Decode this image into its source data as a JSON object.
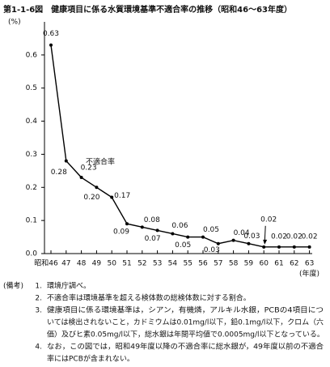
{
  "chart_data": {
    "type": "line",
    "title": "第1-1-6図　健康項目に係る水質環境基準不適合率の推移（昭和46～63年度）",
    "y_unit": "(%)",
    "x_unit": "(年度)",
    "annotation": "不適合率",
    "categories": [
      "昭和46",
      "47",
      "48",
      "49",
      "50",
      "51",
      "52",
      "53",
      "54",
      "55",
      "56",
      "57",
      "58",
      "59",
      "60",
      "61",
      "62",
      "63"
    ],
    "values": [
      0.63,
      0.28,
      0.23,
      0.2,
      0.17,
      0.09,
      0.08,
      0.07,
      0.06,
      0.05,
      0.05,
      0.03,
      0.04,
      0.03,
      0.02,
      0.02,
      0.02,
      0.02
    ],
    "value_labels": [
      "0.63",
      "0.28",
      "0.23",
      "0.20",
      "0.17",
      "0.09",
      "0.08",
      "0.07",
      "0.06",
      "0.05",
      "0.05",
      "0.03",
      "0.04",
      "0.03",
      "0.02",
      "0.02",
      "0.02",
      "0.02"
    ],
    "color": "#000000",
    "ylim": [
      0,
      0.7
    ],
    "yticks": [
      {
        "value": 0,
        "label": "0.0"
      },
      0.1,
      0.2,
      0.3,
      0.4,
      0.5,
      0.6
    ]
  },
  "notes": {
    "label": "(備考)",
    "items": [
      {
        "number": "1.",
        "lines": [
          "環境庁調べ。"
        ]
      },
      {
        "number": "2.",
        "lines": [
          "不適合率は環境基準を超える検体数の総検体数に対する割合。"
        ]
      },
      {
        "number": "3.",
        "lines": [
          "健康項目に係る環境基準は，シアン，有機燐，アルキル水銀，PCBの4項目につ",
          "いては検出されないこと，カドミウムは0.01mg/l以下，鉛0.1mg/l以下，クロム（六",
          "価）及びヒ素0.05mg/l以下，総水銀は年間平均値で0.0005mg/l以下となっている。"
        ]
      },
      {
        "number": "4.",
        "lines": [
          "なお，この図では，昭和49年度以降の不適合率に総水銀が，49年度以前の不適合",
          "率にはPCBが含まれない。"
        ]
      }
    ]
  }
}
